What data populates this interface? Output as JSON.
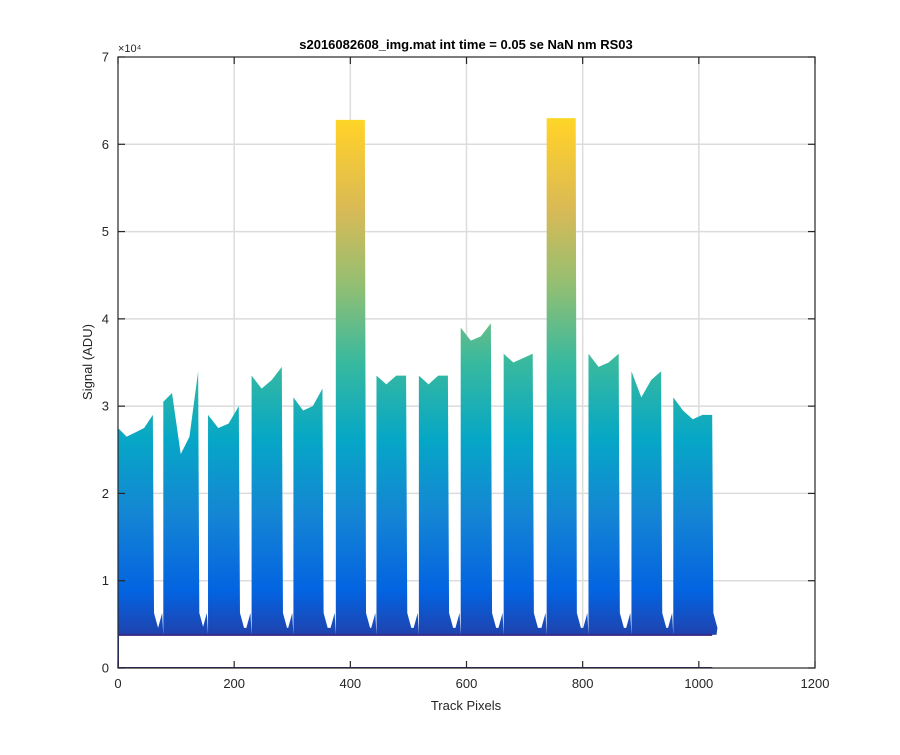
{
  "chart_data": {
    "type": "area",
    "title": "s2016082608_img.mat int time = 0.05 se  NaN nm RS03",
    "xlabel": "Track Pixels",
    "ylabel": "Signal (ADU)",
    "xlim": [
      0,
      1200
    ],
    "ylim": [
      0,
      70000
    ],
    "xticks": [
      0,
      200,
      400,
      600,
      800,
      1000,
      1200
    ],
    "yticks": [
      0,
      10000,
      20000,
      30000,
      40000,
      50000,
      60000,
      70000
    ],
    "xtick_labels": [
      "0",
      "200",
      "400",
      "600",
      "800",
      "1000",
      "1200"
    ],
    "ytick_labels": [
      "0",
      "1",
      "2",
      "3",
      "4",
      "5",
      "6",
      "7"
    ],
    "y_exponent_label": "×10⁴",
    "grid": true,
    "baseline": 3800,
    "colormap": "parula",
    "colormap_stops": [
      "#352a87",
      "#0363e1",
      "#1485d4",
      "#06a7c6",
      "#38b99e",
      "#92bf73",
      "#d9ba56",
      "#fcce2e",
      "#f9fb0e"
    ],
    "peaks": [
      {
        "x_start": 0,
        "x_end": 60,
        "y": [
          27500,
          26500,
          27000,
          27500,
          29000
        ]
      },
      {
        "x_start": 78,
        "x_end": 138,
        "y": [
          30500,
          31500,
          24500,
          26500,
          34000
        ]
      },
      {
        "x_start": 155,
        "x_end": 208,
        "y": [
          29000,
          27500,
          28000,
          30000
        ]
      },
      {
        "x_start": 230,
        "x_end": 282,
        "y": [
          33500,
          32000,
          33000,
          34500
        ]
      },
      {
        "x_start": 302,
        "x_end": 352,
        "y": [
          31000,
          29500,
          30000,
          32000
        ]
      },
      {
        "x_start": 375,
        "x_end": 425,
        "y": [
          62800,
          62800
        ]
      },
      {
        "x_start": 445,
        "x_end": 496,
        "y": [
          33500,
          32500,
          33500,
          33500
        ]
      },
      {
        "x_start": 518,
        "x_end": 568,
        "y": [
          33500,
          32500,
          33500,
          33500
        ]
      },
      {
        "x_start": 590,
        "x_end": 642,
        "y": [
          39000,
          37500,
          38000,
          39500
        ]
      },
      {
        "x_start": 664,
        "x_end": 714,
        "y": [
          36000,
          35000,
          35500,
          36000
        ]
      },
      {
        "x_start": 738,
        "x_end": 788,
        "y": [
          63000,
          63000
        ]
      },
      {
        "x_start": 810,
        "x_end": 862,
        "y": [
          36000,
          34500,
          35000,
          36000
        ]
      },
      {
        "x_start": 884,
        "x_end": 935,
        "y": [
          34000,
          31000,
          33000,
          34000
        ]
      },
      {
        "x_start": 956,
        "x_end": 1023,
        "y": [
          31000,
          29500,
          28500,
          29000,
          29000
        ]
      }
    ]
  }
}
